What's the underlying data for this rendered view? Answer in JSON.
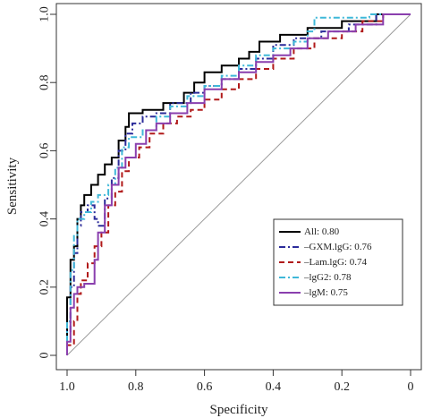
{
  "chart_data": {
    "type": "line",
    "title": "",
    "xlabel": "Specificity",
    "ylabel": "Sensitivity",
    "xlim": [
      1.0,
      0.0
    ],
    "ylim": [
      0.0,
      1.0
    ],
    "x_reversed": true,
    "x_ticks": [
      "1.0",
      "0.8",
      "0.6",
      "0.4",
      "0.2",
      "0"
    ],
    "y_ticks": [
      "0",
      "0.2",
      "0.4",
      "0.6",
      "0.8",
      "1.0"
    ],
    "grid": false,
    "legend_position": "bottom-right",
    "reference_line": {
      "from": [
        1.0,
        0.0
      ],
      "to": [
        0.0,
        1.0
      ],
      "color": "#9a9a9a"
    },
    "series": [
      {
        "name": "All: 0.80",
        "color": "#000000",
        "dash": "solid",
        "points": [
          [
            1.0,
            0.0
          ],
          [
            1.0,
            0.17
          ],
          [
            0.99,
            0.17
          ],
          [
            0.99,
            0.28
          ],
          [
            0.98,
            0.28
          ],
          [
            0.98,
            0.32
          ],
          [
            0.97,
            0.32
          ],
          [
            0.97,
            0.4
          ],
          [
            0.96,
            0.4
          ],
          [
            0.96,
            0.44
          ],
          [
            0.95,
            0.44
          ],
          [
            0.95,
            0.47
          ],
          [
            0.93,
            0.47
          ],
          [
            0.93,
            0.5
          ],
          [
            0.91,
            0.5
          ],
          [
            0.91,
            0.53
          ],
          [
            0.89,
            0.53
          ],
          [
            0.89,
            0.56
          ],
          [
            0.87,
            0.56
          ],
          [
            0.87,
            0.58
          ],
          [
            0.85,
            0.58
          ],
          [
            0.85,
            0.63
          ],
          [
            0.83,
            0.63
          ],
          [
            0.83,
            0.67
          ],
          [
            0.82,
            0.67
          ],
          [
            0.82,
            0.71
          ],
          [
            0.78,
            0.71
          ],
          [
            0.78,
            0.72
          ],
          [
            0.72,
            0.72
          ],
          [
            0.72,
            0.74
          ],
          [
            0.66,
            0.74
          ],
          [
            0.66,
            0.77
          ],
          [
            0.63,
            0.77
          ],
          [
            0.63,
            0.8
          ],
          [
            0.6,
            0.8
          ],
          [
            0.6,
            0.83
          ],
          [
            0.55,
            0.83
          ],
          [
            0.55,
            0.85
          ],
          [
            0.5,
            0.85
          ],
          [
            0.5,
            0.87
          ],
          [
            0.47,
            0.87
          ],
          [
            0.47,
            0.89
          ],
          [
            0.44,
            0.89
          ],
          [
            0.44,
            0.92
          ],
          [
            0.38,
            0.92
          ],
          [
            0.38,
            0.94
          ],
          [
            0.3,
            0.94
          ],
          [
            0.3,
            0.96
          ],
          [
            0.2,
            0.96
          ],
          [
            0.2,
            0.98
          ],
          [
            0.1,
            0.98
          ],
          [
            0.1,
            1.0
          ],
          [
            0.0,
            1.0
          ]
        ]
      },
      {
        "name": "–GXM.lgG: 0.76",
        "color": "#2c2c9a",
        "dash": "dashdot",
        "points": [
          [
            1.0,
            0.0
          ],
          [
            1.0,
            0.07
          ],
          [
            0.99,
            0.07
          ],
          [
            0.99,
            0.2
          ],
          [
            0.98,
            0.2
          ],
          [
            0.98,
            0.3
          ],
          [
            0.97,
            0.3
          ],
          [
            0.97,
            0.38
          ],
          [
            0.96,
            0.38
          ],
          [
            0.96,
            0.42
          ],
          [
            0.94,
            0.42
          ],
          [
            0.94,
            0.44
          ],
          [
            0.92,
            0.44
          ],
          [
            0.92,
            0.4
          ],
          [
            0.91,
            0.4
          ],
          [
            0.91,
            0.38
          ],
          [
            0.89,
            0.38
          ],
          [
            0.89,
            0.46
          ],
          [
            0.87,
            0.46
          ],
          [
            0.87,
            0.52
          ],
          [
            0.85,
            0.52
          ],
          [
            0.85,
            0.6
          ],
          [
            0.83,
            0.6
          ],
          [
            0.83,
            0.65
          ],
          [
            0.81,
            0.65
          ],
          [
            0.81,
            0.68
          ],
          [
            0.78,
            0.68
          ],
          [
            0.78,
            0.7
          ],
          [
            0.74,
            0.7
          ],
          [
            0.74,
            0.71
          ],
          [
            0.7,
            0.71
          ],
          [
            0.7,
            0.74
          ],
          [
            0.64,
            0.74
          ],
          [
            0.64,
            0.77
          ],
          [
            0.6,
            0.77
          ],
          [
            0.6,
            0.79
          ],
          [
            0.55,
            0.79
          ],
          [
            0.55,
            0.81
          ],
          [
            0.5,
            0.81
          ],
          [
            0.5,
            0.84
          ],
          [
            0.45,
            0.84
          ],
          [
            0.45,
            0.87
          ],
          [
            0.4,
            0.87
          ],
          [
            0.4,
            0.91
          ],
          [
            0.34,
            0.91
          ],
          [
            0.34,
            0.93
          ],
          [
            0.26,
            0.93
          ],
          [
            0.26,
            0.95
          ],
          [
            0.18,
            0.95
          ],
          [
            0.18,
            0.97
          ],
          [
            0.1,
            0.97
          ],
          [
            0.1,
            1.0
          ],
          [
            0.0,
            1.0
          ]
        ]
      },
      {
        "name": "–Lam.lgG: 0.74",
        "color": "#b11a1a",
        "dash": "dashed",
        "points": [
          [
            1.0,
            0.0
          ],
          [
            1.0,
            0.03
          ],
          [
            0.98,
            0.03
          ],
          [
            0.98,
            0.1
          ],
          [
            0.97,
            0.1
          ],
          [
            0.97,
            0.18
          ],
          [
            0.96,
            0.18
          ],
          [
            0.96,
            0.22
          ],
          [
            0.94,
            0.22
          ],
          [
            0.94,
            0.27
          ],
          [
            0.92,
            0.27
          ],
          [
            0.92,
            0.32
          ],
          [
            0.9,
            0.32
          ],
          [
            0.9,
            0.36
          ],
          [
            0.88,
            0.36
          ],
          [
            0.88,
            0.44
          ],
          [
            0.86,
            0.44
          ],
          [
            0.86,
            0.48
          ],
          [
            0.84,
            0.48
          ],
          [
            0.84,
            0.54
          ],
          [
            0.82,
            0.54
          ],
          [
            0.82,
            0.58
          ],
          [
            0.79,
            0.58
          ],
          [
            0.79,
            0.61
          ],
          [
            0.76,
            0.61
          ],
          [
            0.76,
            0.65
          ],
          [
            0.72,
            0.65
          ],
          [
            0.72,
            0.68
          ],
          [
            0.68,
            0.68
          ],
          [
            0.68,
            0.7
          ],
          [
            0.64,
            0.7
          ],
          [
            0.64,
            0.72
          ],
          [
            0.6,
            0.72
          ],
          [
            0.6,
            0.75
          ],
          [
            0.55,
            0.75
          ],
          [
            0.55,
            0.78
          ],
          [
            0.5,
            0.78
          ],
          [
            0.5,
            0.81
          ],
          [
            0.45,
            0.81
          ],
          [
            0.45,
            0.84
          ],
          [
            0.4,
            0.84
          ],
          [
            0.4,
            0.87
          ],
          [
            0.34,
            0.87
          ],
          [
            0.34,
            0.9
          ],
          [
            0.28,
            0.9
          ],
          [
            0.28,
            0.93
          ],
          [
            0.2,
            0.93
          ],
          [
            0.2,
            0.95
          ],
          [
            0.14,
            0.95
          ],
          [
            0.14,
            0.98
          ],
          [
            0.08,
            0.98
          ],
          [
            0.08,
            1.0
          ],
          [
            0.0,
            1.0
          ]
        ]
      },
      {
        "name": "–lgG2: 0.78",
        "color": "#3fb8d8",
        "dash": "dashdot",
        "points": [
          [
            1.0,
            0.0
          ],
          [
            1.0,
            0.1
          ],
          [
            0.99,
            0.1
          ],
          [
            0.99,
            0.25
          ],
          [
            0.98,
            0.25
          ],
          [
            0.98,
            0.35
          ],
          [
            0.97,
            0.35
          ],
          [
            0.97,
            0.4
          ],
          [
            0.95,
            0.4
          ],
          [
            0.95,
            0.42
          ],
          [
            0.93,
            0.42
          ],
          [
            0.93,
            0.45
          ],
          [
            0.91,
            0.45
          ],
          [
            0.91,
            0.47
          ],
          [
            0.88,
            0.47
          ],
          [
            0.88,
            0.5
          ],
          [
            0.86,
            0.5
          ],
          [
            0.86,
            0.55
          ],
          [
            0.84,
            0.55
          ],
          [
            0.84,
            0.61
          ],
          [
            0.82,
            0.61
          ],
          [
            0.82,
            0.64
          ],
          [
            0.78,
            0.64
          ],
          [
            0.78,
            0.66
          ],
          [
            0.74,
            0.66
          ],
          [
            0.74,
            0.7
          ],
          [
            0.7,
            0.7
          ],
          [
            0.7,
            0.73
          ],
          [
            0.65,
            0.73
          ],
          [
            0.65,
            0.76
          ],
          [
            0.6,
            0.76
          ],
          [
            0.6,
            0.79
          ],
          [
            0.55,
            0.79
          ],
          [
            0.55,
            0.82
          ],
          [
            0.5,
            0.82
          ],
          [
            0.5,
            0.85
          ],
          [
            0.45,
            0.85
          ],
          [
            0.45,
            0.88
          ],
          [
            0.4,
            0.88
          ],
          [
            0.4,
            0.9
          ],
          [
            0.34,
            0.9
          ],
          [
            0.34,
            0.92
          ],
          [
            0.3,
            0.92
          ],
          [
            0.3,
            0.95
          ],
          [
            0.28,
            0.95
          ],
          [
            0.28,
            0.99
          ],
          [
            0.12,
            0.99
          ],
          [
            0.12,
            1.0
          ],
          [
            0.0,
            1.0
          ]
        ]
      },
      {
        "name": "–lgM: 0.75",
        "color": "#8a3fae",
        "dash": "solid",
        "points": [
          [
            1.0,
            0.0
          ],
          [
            1.0,
            0.04
          ],
          [
            0.99,
            0.04
          ],
          [
            0.99,
            0.14
          ],
          [
            0.98,
            0.14
          ],
          [
            0.98,
            0.18
          ],
          [
            0.97,
            0.18
          ],
          [
            0.97,
            0.2
          ],
          [
            0.95,
            0.2
          ],
          [
            0.95,
            0.21
          ],
          [
            0.92,
            0.21
          ],
          [
            0.92,
            0.28
          ],
          [
            0.91,
            0.28
          ],
          [
            0.91,
            0.36
          ],
          [
            0.89,
            0.36
          ],
          [
            0.89,
            0.44
          ],
          [
            0.87,
            0.44
          ],
          [
            0.87,
            0.5
          ],
          [
            0.85,
            0.5
          ],
          [
            0.85,
            0.55
          ],
          [
            0.83,
            0.55
          ],
          [
            0.83,
            0.58
          ],
          [
            0.8,
            0.58
          ],
          [
            0.8,
            0.62
          ],
          [
            0.77,
            0.62
          ],
          [
            0.77,
            0.66
          ],
          [
            0.74,
            0.66
          ],
          [
            0.74,
            0.68
          ],
          [
            0.7,
            0.68
          ],
          [
            0.7,
            0.71
          ],
          [
            0.65,
            0.71
          ],
          [
            0.65,
            0.74
          ],
          [
            0.6,
            0.74
          ],
          [
            0.6,
            0.78
          ],
          [
            0.55,
            0.78
          ],
          [
            0.55,
            0.81
          ],
          [
            0.5,
            0.81
          ],
          [
            0.5,
            0.83
          ],
          [
            0.45,
            0.83
          ],
          [
            0.45,
            0.86
          ],
          [
            0.4,
            0.86
          ],
          [
            0.4,
            0.88
          ],
          [
            0.35,
            0.88
          ],
          [
            0.35,
            0.9
          ],
          [
            0.3,
            0.9
          ],
          [
            0.3,
            0.93
          ],
          [
            0.24,
            0.93
          ],
          [
            0.24,
            0.95
          ],
          [
            0.16,
            0.95
          ],
          [
            0.16,
            0.97
          ],
          [
            0.08,
            0.97
          ],
          [
            0.08,
            1.0
          ],
          [
            0.0,
            1.0
          ]
        ]
      }
    ]
  }
}
